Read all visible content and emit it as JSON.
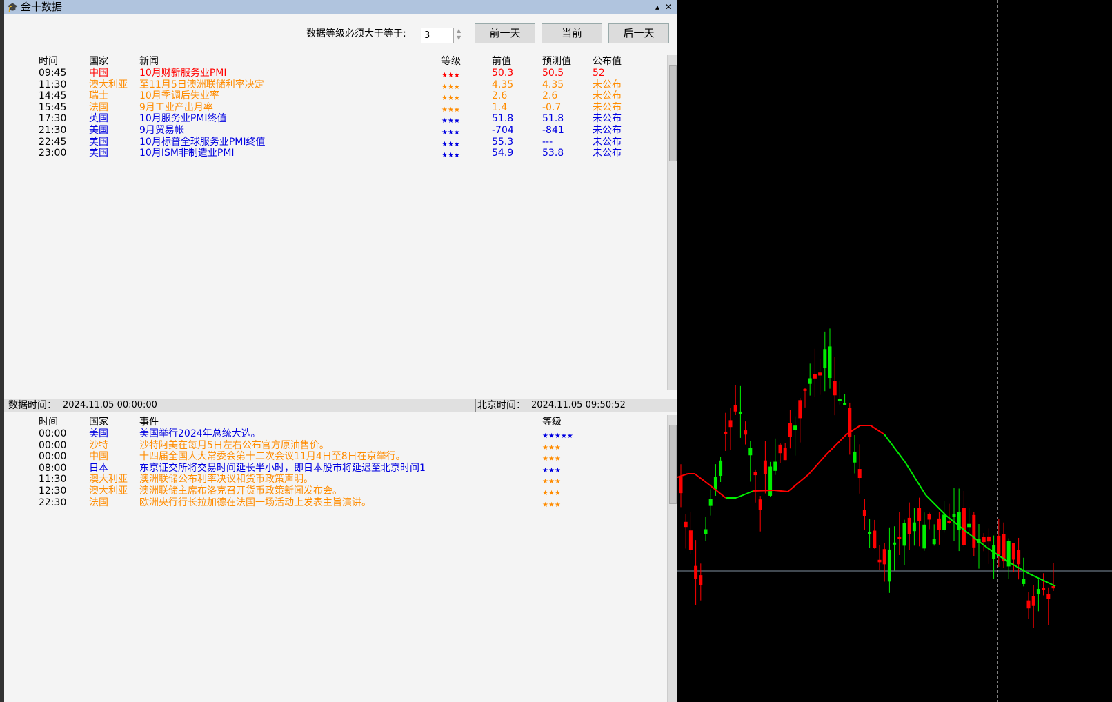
{
  "window": {
    "title": "金十数据",
    "icon": "app-mortarboard-icon"
  },
  "filter": {
    "label": "数据等级必须大于等于:",
    "value": "3"
  },
  "buttons": {
    "prev": "前一天",
    "current": "当前",
    "next": "后一天"
  },
  "colors": {
    "red": "#ff0000",
    "orange": "#ff8c00",
    "blue": "#0000e0",
    "bull": "#00ee00",
    "bear": "#ff0000"
  },
  "news": {
    "headers": {
      "time": "时间",
      "country": "国家",
      "news": "新闻",
      "level": "等级",
      "prev": "前值",
      "forecast": "预测值",
      "actual": "公布值"
    },
    "rows": [
      {
        "time": "09:45",
        "country": "中国",
        "news": "10月财新服务业PMI",
        "level": "★★★",
        "prev": "50.3",
        "forecast": "50.5",
        "actual": "52",
        "color": "red"
      },
      {
        "time": "11:30",
        "country": "澳大利亚",
        "news": "至11月5日澳洲联储利率决定",
        "level": "★★★",
        "prev": "4.35",
        "forecast": "4.35",
        "actual": "未公布",
        "color": "orange"
      },
      {
        "time": "14:45",
        "country": "瑞士",
        "news": "10月季调后失业率",
        "level": "★★★",
        "prev": "2.6",
        "forecast": "2.6",
        "actual": "未公布",
        "color": "orange"
      },
      {
        "time": "15:45",
        "country": "法国",
        "news": "9月工业产出月率",
        "level": "★★★",
        "prev": "1.4",
        "forecast": "-0.7",
        "actual": "未公布",
        "color": "orange"
      },
      {
        "time": "17:30",
        "country": "英国",
        "news": "10月服务业PMI终值",
        "level": "★★★",
        "prev": "51.8",
        "forecast": "51.8",
        "actual": "未公布",
        "color": "blue"
      },
      {
        "time": "21:30",
        "country": "美国",
        "news": "9月贸易帐",
        "level": "★★★",
        "prev": "-704",
        "forecast": "-841",
        "actual": "未公布",
        "color": "blue"
      },
      {
        "time": "22:45",
        "country": "美国",
        "news": "10月标普全球服务业PMI终值",
        "level": "★★★",
        "prev": "55.3",
        "forecast": "---",
        "actual": "未公布",
        "color": "blue"
      },
      {
        "time": "23:00",
        "country": "美国",
        "news": "10月ISM非制造业PMI",
        "level": "★★★",
        "prev": "54.9",
        "forecast": "53.8",
        "actual": "未公布",
        "color": "blue"
      }
    ]
  },
  "status": {
    "data_time_label": "数据时间：",
    "data_time": "2024.11.05 00:00:00",
    "beijing_label": "北京时间：",
    "beijing_time": "2024.11.05 09:50:52"
  },
  "events": {
    "headers": {
      "time": "时间",
      "country": "国家",
      "event": "事件",
      "level": "等级"
    },
    "rows": [
      {
        "time": "00:00",
        "country": "美国",
        "event": "美国举行2024年总统大选。",
        "level": "★★★★★",
        "color": "blue"
      },
      {
        "time": "00:00",
        "country": "沙特",
        "event": "沙特阿美在每月5日左右公布官方原油售价。",
        "level": "★★★",
        "color": "orange"
      },
      {
        "time": "00:00",
        "country": "中国",
        "event": "十四届全国人大常委会第十二次会议11月4日至8日在京举行。",
        "level": "★★★",
        "color": "orange"
      },
      {
        "time": "08:00",
        "country": "日本",
        "event": "东京证交所将交易时间延长半小时，即日本股市将延迟至北京时间1",
        "level": "★★★",
        "color": "blue"
      },
      {
        "time": "11:30",
        "country": "澳大利亚",
        "event": "澳洲联储公布利率决议和货币政策声明。",
        "level": "★★★",
        "color": "orange"
      },
      {
        "time": "12:30",
        "country": "澳大利亚",
        "event": "澳洲联储主席布洛克召开货币政策新闻发布会。",
        "level": "★★★",
        "color": "orange"
      },
      {
        "time": "22:30",
        "country": "法国",
        "event": "欧洲央行行长拉加德在法国一场活动上发表主旨演讲。",
        "level": "★★★",
        "color": "orange"
      }
    ]
  }
}
